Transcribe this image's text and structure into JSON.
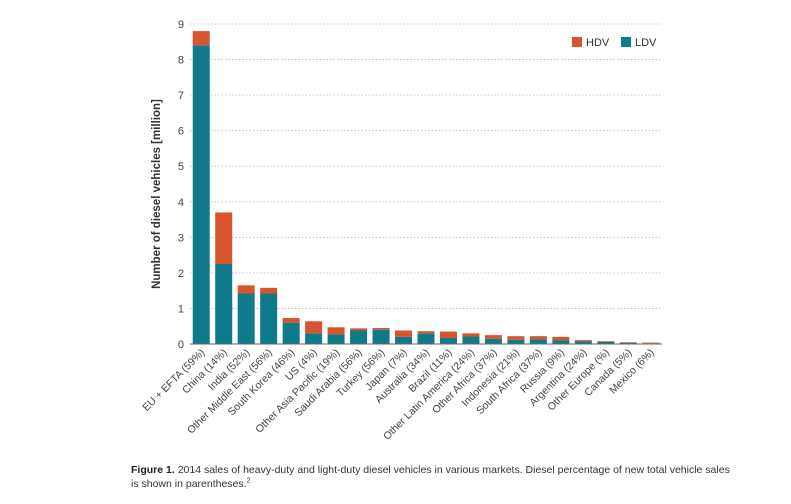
{
  "colors": {
    "HDV": "#d9532f",
    "LDV": "#0e7a8a",
    "grid": "#b8b8b8",
    "text": "#444444"
  },
  "chart_data": {
    "type": "bar",
    "stacked": true,
    "ylabel": "Number of diesel vehicles [million]",
    "xlabel": "",
    "ylim": [
      0,
      9
    ],
    "yticks": [
      0,
      1,
      2,
      3,
      4,
      5,
      6,
      7,
      8,
      9
    ],
    "grid": true,
    "legend": "top-right",
    "categories": [
      "EU + EFTA (59%)",
      "China (14%)",
      "India (52%)",
      "Other Middle East (56%)",
      "South Korea (46%)",
      "US (4%)",
      "Other Asia Pacific (19%)",
      "Saudi Arabia (56%)",
      "Turkey (56%)",
      "Japan (7%)",
      "Australia (34%)",
      "Brazil (11%)",
      "Other Latin America (24%)",
      "Other Africa (37%)",
      "Indonesia (21%)",
      "South Africa (37%)",
      "Russia (9%)",
      "Argentina (24%)",
      "Other Europe (%)",
      "Canada (5%)",
      "Mexico (6%)"
    ],
    "series": [
      {
        "name": "LDV",
        "values": [
          8.4,
          2.25,
          1.42,
          1.42,
          0.6,
          0.3,
          0.27,
          0.38,
          0.4,
          0.2,
          0.3,
          0.17,
          0.21,
          0.15,
          0.12,
          0.13,
          0.1,
          0.08,
          0.06,
          0.03,
          0.02
        ]
      },
      {
        "name": "HDV",
        "values": [
          0.4,
          1.45,
          0.23,
          0.16,
          0.13,
          0.34,
          0.2,
          0.06,
          0.05,
          0.18,
          0.06,
          0.18,
          0.09,
          0.1,
          0.1,
          0.09,
          0.1,
          0.03,
          0.02,
          0.02,
          0.02
        ]
      }
    ]
  },
  "caption": {
    "figure_label": "Figure 1.",
    "text": "2014 sales of heavy-duty and light-duty diesel vehicles in various markets. Diesel percentage of new total vehicle sales is shown in parentheses.",
    "footnote": "2"
  }
}
